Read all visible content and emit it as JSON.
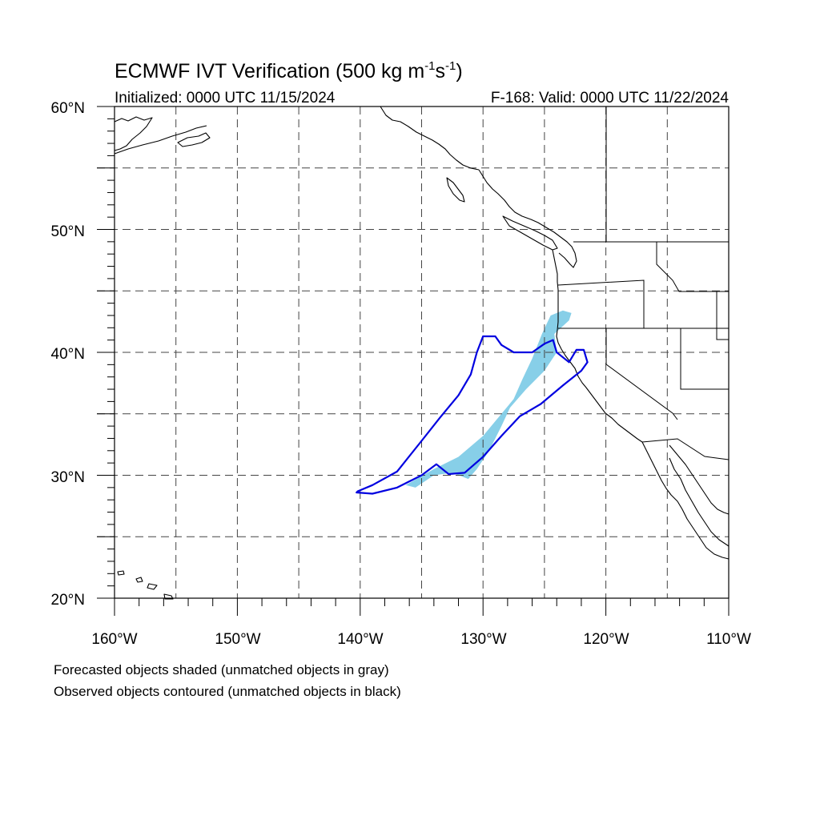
{
  "figure": {
    "title": "ECMWF IVT Verification (500 kg m",
    "title_sup1": "-1",
    "title_mid": "s",
    "title_sup2": "-1",
    "title_end": ")",
    "initialized": "Initialized: 0000 UTC 11/15/2024",
    "valid": "F-168: Valid: 0000 UTC 11/22/2024"
  },
  "map": {
    "lon_range": [
      -160,
      -110
    ],
    "lat_range": [
      20,
      60
    ],
    "lat_labels": [
      "60°N",
      "50°N",
      "40°N",
      "30°N",
      "20°N"
    ],
    "lon_labels": [
      "160°W",
      "150°W",
      "140°W",
      "130°W",
      "120°W",
      "110°W"
    ],
    "grid": "dashed every 5°",
    "forecast_object_color": "#87cfe8",
    "observed_contour_color": "#0000e0",
    "forecast_object": [
      [
        -136.3,
        29.2
      ],
      [
        -134.0,
        30.5
      ],
      [
        -132.0,
        31.5
      ],
      [
        -130.0,
        33.2
      ],
      [
        -128.5,
        35.0
      ],
      [
        -127.5,
        36.2
      ],
      [
        -126.8,
        37.8
      ],
      [
        -126.0,
        39.5
      ],
      [
        -125.2,
        41.5
      ],
      [
        -124.5,
        43.0
      ],
      [
        -123.5,
        43.4
      ],
      [
        -122.8,
        43.2
      ],
      [
        -123.0,
        42.6
      ],
      [
        -124.2,
        41.5
      ],
      [
        -124.0,
        40.0
      ],
      [
        -125.0,
        38.5
      ],
      [
        -126.5,
        37.0
      ],
      [
        -127.8,
        35.5
      ],
      [
        -128.5,
        34.0
      ],
      [
        -129.5,
        32.0
      ],
      [
        -130.5,
        30.5
      ],
      [
        -131.2,
        29.7
      ],
      [
        -132.5,
        30.2
      ],
      [
        -134.0,
        30.0
      ],
      [
        -135.5,
        29.0
      ]
    ],
    "observed_object": [
      [
        -140.2,
        28.7
      ],
      [
        -139.0,
        29.2
      ],
      [
        -137.0,
        30.3
      ],
      [
        -135.0,
        32.8
      ],
      [
        -133.5,
        34.7
      ],
      [
        -132.0,
        36.5
      ],
      [
        -131.0,
        38.2
      ],
      [
        -130.5,
        40.0
      ],
      [
        -130.0,
        41.3
      ],
      [
        -129.0,
        41.3
      ],
      [
        -128.5,
        40.6
      ],
      [
        -127.5,
        40.0
      ],
      [
        -126.0,
        40.0
      ],
      [
        -125.0,
        40.7
      ],
      [
        -124.3,
        41.0
      ],
      [
        -124.0,
        40.0
      ],
      [
        -123.0,
        39.2
      ],
      [
        -122.4,
        40.2
      ],
      [
        -121.8,
        40.2
      ],
      [
        -121.5,
        39.2
      ],
      [
        -122.0,
        38.5
      ],
      [
        -123.5,
        37.3
      ],
      [
        -125.3,
        35.8
      ],
      [
        -127.0,
        34.8
      ],
      [
        -128.5,
        33.2
      ],
      [
        -130.0,
        31.5
      ],
      [
        -131.5,
        30.2
      ],
      [
        -132.8,
        30.1
      ],
      [
        -133.8,
        30.9
      ],
      [
        -135.0,
        30.0
      ],
      [
        -137.0,
        29.0
      ],
      [
        -139.0,
        28.5
      ],
      [
        -140.3,
        28.6
      ]
    ]
  },
  "footer": {
    "line1": "Forecasted objects shaded (unmatched objects in gray)",
    "line2": "Observed objects contoured (unmatched objects in black)"
  }
}
